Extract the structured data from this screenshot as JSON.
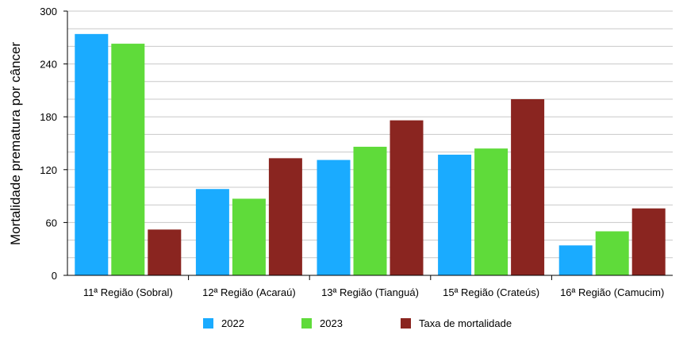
{
  "chart_data": {
    "type": "bar",
    "ylabel": "Mortalidade prematura por câncer",
    "xlabel": "",
    "ylim": [
      0,
      300
    ],
    "yticks": [
      0,
      60,
      120,
      180,
      240,
      300
    ],
    "grid": true,
    "legend_position": "bottom",
    "categories": [
      "11ª Região (Sobral)",
      "12ª Região (Acaraú)",
      "13ª Região (Tianguá)",
      "15ª Região (Crateús)",
      "16ª Região (Camucim)"
    ],
    "series": [
      {
        "name": "2022",
        "color": "#1aabff",
        "values": [
          274,
          98,
          131,
          137,
          34
        ]
      },
      {
        "name": "2023",
        "color": "#5fdb3a",
        "values": [
          263,
          87,
          146,
          144,
          50
        ]
      },
      {
        "name": "Taxa de mortalidade",
        "color": "#8a2520",
        "values": [
          52,
          133,
          176,
          200,
          76
        ]
      }
    ]
  }
}
